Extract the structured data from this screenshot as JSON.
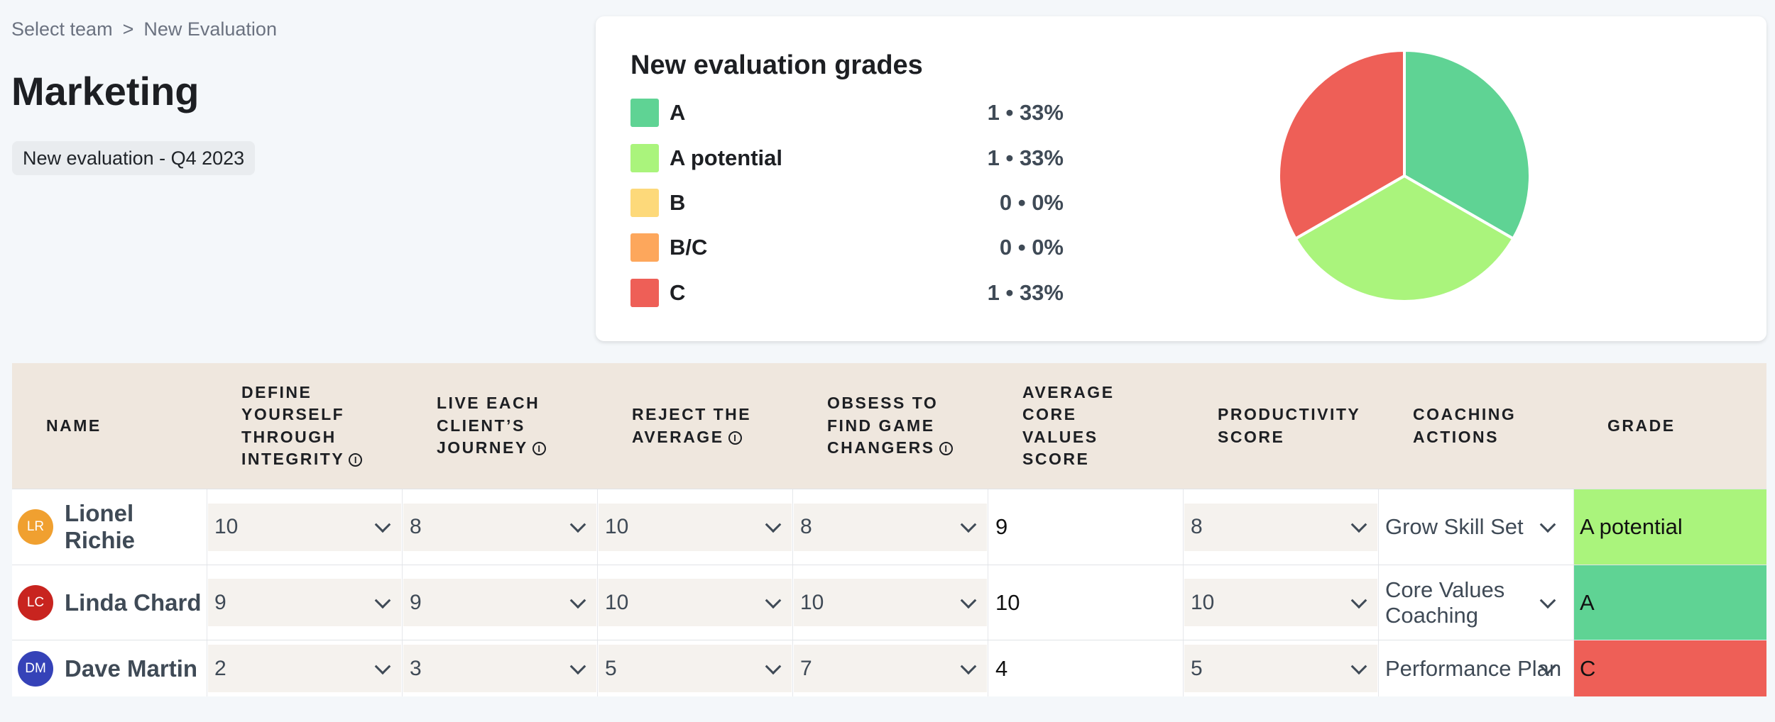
{
  "breadcrumb": {
    "parent": "Select team",
    "separator": ">",
    "current": "New Evaluation"
  },
  "page": {
    "title": "Marketing",
    "evaluation_badge": "New evaluation - Q4 2023"
  },
  "grades_card": {
    "title": "New evaluation grades",
    "legend": [
      {
        "label": "A",
        "stat": "1 • 33%",
        "color": "#5fd394"
      },
      {
        "label": "A potential",
        "stat": "1 • 33%",
        "color": "#aaf47c"
      },
      {
        "label": "B",
        "stat": "0 • 0%",
        "color": "#fdd97a"
      },
      {
        "label": "B/C",
        "stat": "0 • 0%",
        "color": "#fda75c"
      },
      {
        "label": "C",
        "stat": "1 • 33%",
        "color": "#ee5f57"
      }
    ]
  },
  "chart_data": {
    "type": "pie",
    "categories": [
      "A",
      "A potential",
      "B",
      "B/C",
      "C"
    ],
    "values": [
      1,
      1,
      0,
      0,
      1
    ],
    "colors": [
      "#5fd394",
      "#aaf47c",
      "#fdd97a",
      "#fda75c",
      "#ee5f57"
    ]
  },
  "table": {
    "headers": {
      "name": "NAME",
      "integrity": [
        "DEFINE",
        "YOURSELF",
        "THROUGH",
        "INTEGRITY"
      ],
      "journey": [
        "LIVE EACH",
        "CLIENT’S",
        "JOURNEY"
      ],
      "average": [
        "REJECT THE",
        "AVERAGE"
      ],
      "game_changers": [
        "OBSESS TO",
        "FIND GAME",
        "CHANGERS"
      ],
      "avg_core": [
        "AVERAGE",
        "CORE",
        "VALUES",
        "SCORE"
      ],
      "productivity": [
        "PRODUCTIVITY",
        "SCORE"
      ],
      "coaching": [
        "COACHING",
        "ACTIONS"
      ],
      "grade": "GRADE"
    },
    "rows": [
      {
        "initials": "LR",
        "avatar_color": "#f0a030",
        "name_line1": "Lionel",
        "name_line2": "Richie",
        "integrity": "10",
        "journey": "8",
        "average": "10",
        "game_changers": "8",
        "avg_core": "9",
        "productivity": "8",
        "coaching_line1": "Grow Skill Set",
        "coaching_line2": "",
        "grade": "A potential",
        "grade_color": "#aaf47c"
      },
      {
        "initials": "LC",
        "avatar_color": "#c8241f",
        "name_line1": "Linda Chard",
        "name_line2": "",
        "integrity": "9",
        "journey": "9",
        "average": "10",
        "game_changers": "10",
        "avg_core": "10",
        "productivity": "10",
        "coaching_line1": "Core Values",
        "coaching_line2": "Coaching",
        "grade": "A",
        "grade_color": "#5fd394"
      },
      {
        "initials": "DM",
        "avatar_color": "#3542b8",
        "name_line1": "Dave Martin",
        "name_line2": "",
        "integrity": "2",
        "journey": "3",
        "average": "5",
        "game_changers": "7",
        "avg_core": "4",
        "productivity": "5",
        "coaching_line1": "Performance Plan",
        "coaching_line2": "",
        "grade": "C",
        "grade_color": "#ee5f57"
      }
    ]
  }
}
